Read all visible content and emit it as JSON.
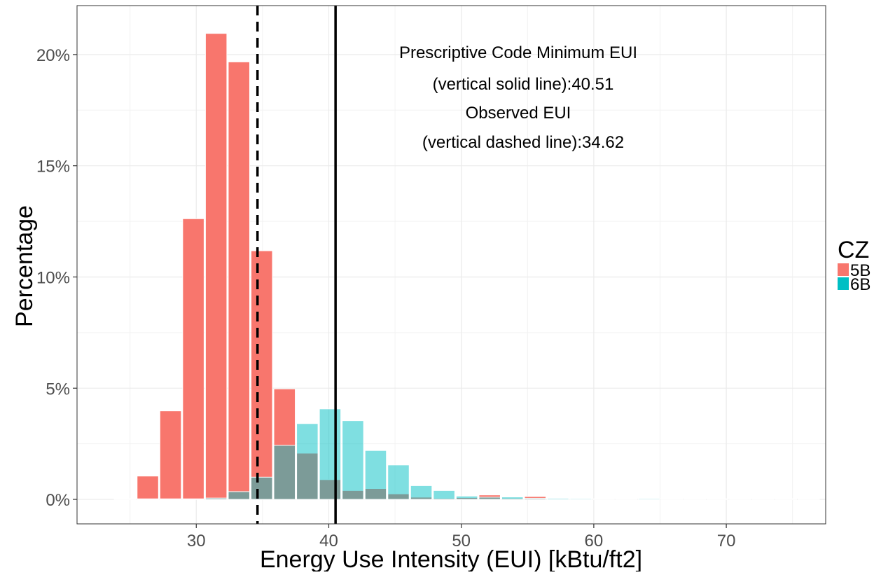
{
  "chart_data": {
    "type": "bar",
    "xlabel": "Energy Use Intensity (EUI) [kBtu/ft2]",
    "ylabel": "Percentage",
    "xlim": [
      21,
      77.5
    ],
    "ylim": [
      -0.011,
      0.222
    ],
    "x_ticks": [
      30,
      40,
      50,
      60,
      70
    ],
    "x_tick_labels": [
      "30",
      "40",
      "50",
      "60",
      "70"
    ],
    "y_ticks": [
      0,
      0.05,
      0.1,
      0.15,
      0.2
    ],
    "y_tick_labels": [
      "0%",
      "5%",
      "10%",
      "15%",
      "20%"
    ],
    "grid": true,
    "bin_width": 1.72,
    "bin_centers": [
      24.62,
      26.34,
      28.06,
      29.78,
      31.5,
      33.22,
      34.94,
      36.66,
      38.38,
      40.1,
      41.82,
      43.54,
      45.26,
      46.98,
      48.7,
      50.42,
      52.14,
      53.86,
      55.58,
      57.3,
      59.02,
      60.74,
      62.46,
      64.18,
      65.9,
      67.62,
      69.34,
      71.06,
      72.78,
      74.5,
      76.22
    ],
    "series": [
      {
        "name": "5B",
        "color": "#F8766D",
        "values": [
          0.0003,
          0.0105,
          0.0398,
          0.1262,
          0.2095,
          0.1967,
          0.1118,
          0.0497,
          0.0208,
          0.0089,
          0.004,
          0.0049,
          0.0025,
          0.001,
          0.0005,
          0.0008,
          0.002,
          0.0005,
          0.0013,
          0.0003,
          0.0,
          0.0,
          0.0,
          0.0,
          0.0,
          0.0,
          0.0,
          0.0,
          0.0,
          0.0,
          0.0
        ]
      },
      {
        "name": "6B",
        "color": "#00BFC4",
        "values": [
          0.0,
          0.0,
          0.0,
          0.0,
          0.0006,
          0.0035,
          0.01,
          0.0243,
          0.0341,
          0.0407,
          0.0354,
          0.022,
          0.0155,
          0.0062,
          0.004,
          0.0015,
          0.001,
          0.0011,
          0.0005,
          0.0005,
          0.0004,
          0.0002,
          0.0003,
          0.0004,
          0.0002,
          0.0001,
          0.0001,
          0.0001,
          0.0001,
          0.0001,
          0.0001
        ]
      }
    ],
    "reference_lines": [
      {
        "x": 40.51,
        "style": "solid"
      },
      {
        "x": 34.62,
        "style": "dashed"
      }
    ],
    "annotation_lines": [
      "Prescriptive Code Minimum EUI",
      "(vertical solid line):40.51",
      "Observed EUI",
      "(vertical dashed line):34.62"
    ],
    "legend": {
      "title": "CZ",
      "position": "right",
      "entries": [
        {
          "label": "5B",
          "color": "#F8766D"
        },
        {
          "label": "6B",
          "color": "#00BFC4"
        }
      ]
    }
  }
}
